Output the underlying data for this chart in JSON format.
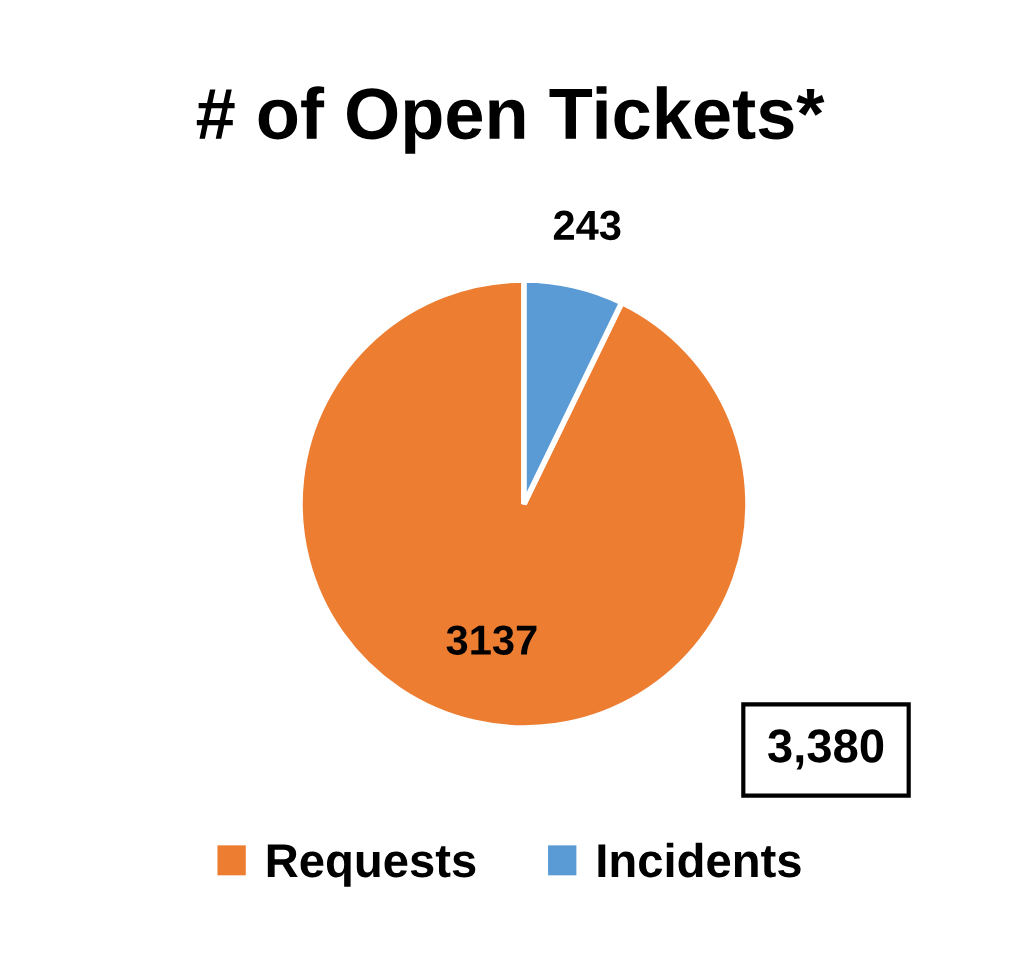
{
  "chart_data": {
    "type": "pie",
    "title": "# of Open Tickets*",
    "categories": [
      "Requests",
      "Incidents"
    ],
    "values": [
      3137,
      243
    ],
    "colors": [
      "#ed7d31",
      "#5b9bd5"
    ],
    "data_labels": true,
    "legend": "bottom",
    "annotations": [
      "3,380"
    ]
  }
}
